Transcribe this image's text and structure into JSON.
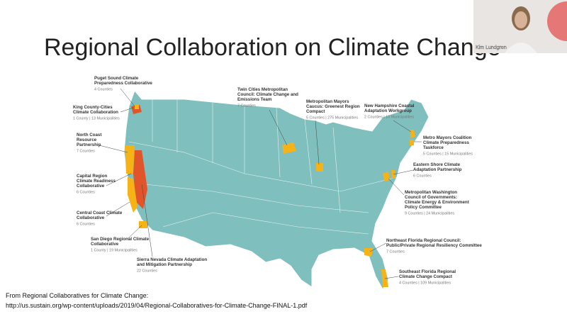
{
  "slide": {
    "title": "Regional Collaboration on Climate Change",
    "regions": [
      {
        "name": [
          "Puget Sound Climate",
          "Preparedness Collaborative"
        ],
        "detail": "4 Counties"
      },
      {
        "name": [
          "King County-Cities",
          "Climate Collaboration"
        ],
        "detail": "1 County | 13 Municipalities"
      },
      {
        "name": [
          "North Coast",
          "Resource",
          "Partnership"
        ],
        "detail": "7 Counties"
      },
      {
        "name": [
          "Capital Region",
          "Climate Readiness",
          "Collaborative"
        ],
        "detail": "6 Counties"
      },
      {
        "name": [
          "Central Coast Climate",
          "Collaborative"
        ],
        "detail": "6 Counties"
      },
      {
        "name": [
          "San Diego Regional Climate",
          "Collaborative"
        ],
        "detail": "1 County | 19 Municipalities"
      },
      {
        "name": [
          "Sierra Nevada Climate Adaptation",
          "and Mitigation Partnership"
        ],
        "detail": "22 Counties"
      },
      {
        "name": [
          "Twin Cities Metropolitan",
          "Council: Climate Change and",
          "Emissions Team"
        ],
        "detail": "7 Counties"
      },
      {
        "name": [
          "Metropolitan Mayors",
          "Caucus: Greenest Region",
          "Compact"
        ],
        "detail": "5 Counties | 275 Municipalities"
      },
      {
        "name": [
          "New Hampshire Coastal",
          "Adaptation Workgroup"
        ],
        "detail": "2 Counties | 10 Municipalities"
      },
      {
        "name": [
          "Metro Mayors Coalition",
          "Climate Preparedness",
          "Taskforce"
        ],
        "detail": "5 Counties | 15 Municipalities"
      },
      {
        "name": [
          "Eastern Shore Climate",
          "Adaptation Partnership"
        ],
        "detail": "6 Counties"
      },
      {
        "name": [
          "Metropolitan Washington",
          "Council of Governments:",
          "Climate Energy & Environment",
          "Policy Committee"
        ],
        "detail": "9 Counties | 24 Municipalities"
      },
      {
        "name": [
          "Northeast Florida Regional Council:",
          "Public/Private Regional Resiliency Committee"
        ],
        "detail": "7 Counties"
      },
      {
        "name": [
          "Southeast Florida Regional",
          "Climate Change Compact"
        ],
        "detail": "4 Counties | 109 Municipalities"
      }
    ],
    "source": [
      "From Regional Collaboratives for Climate Change:",
      "http://us.sustain.org/wp-content/uploads/2019/04/Regional-Collaboratives-for-Climate-Change-FINAL-1.pdf"
    ]
  },
  "participant": {
    "name": "Kim Lundgren"
  }
}
